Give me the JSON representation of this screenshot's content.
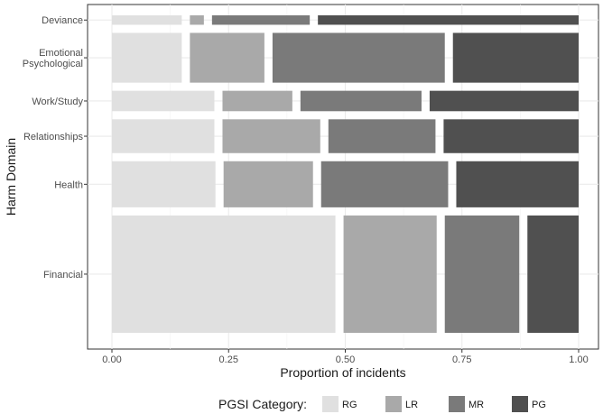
{
  "chart_data": {
    "type": "mosaic",
    "title": "",
    "xlabel": "Proportion of incidents",
    "ylabel": "Harm Domain",
    "xlim": [
      0,
      1
    ],
    "x_ticks": [
      "0.00",
      "0.25",
      "0.50",
      "0.75",
      "1.00"
    ],
    "x_tick_values": [
      0,
      0.25,
      0.5,
      0.75,
      1.0
    ],
    "grid": true,
    "legend": {
      "title": "PGSI Category:",
      "position": "bottom",
      "entries": [
        "RG",
        "LR",
        "MR",
        "PG"
      ]
    },
    "colors": {
      "RG": "#e0e0e0",
      "LR": "#a9a9a9",
      "MR": "#7a7a7a",
      "PG": "#505050"
    },
    "category_row_weights_note": "",
    "rows": [
      {
        "domain": "Financial",
        "label_lines": [
          "Financial"
        ],
        "weight": 0.448,
        "segments": [
          {
            "category": "RG",
            "value": 0.48
          },
          {
            "category": "LR",
            "value": 0.2
          },
          {
            "category": "MR",
            "value": 0.16
          },
          {
            "category": "PG",
            "value": 0.11
          }
        ]
      },
      {
        "domain": "Health",
        "label_lines": [
          "Health"
        ],
        "weight": 0.176,
        "segments": [
          {
            "category": "RG",
            "value": 0.22
          },
          {
            "category": "LR",
            "value": 0.19
          },
          {
            "category": "MR",
            "value": 0.27
          },
          {
            "category": "PG",
            "value": 0.26
          }
        ]
      },
      {
        "domain": "Relationships",
        "label_lines": [
          "Relationships"
        ],
        "weight": 0.129,
        "segments": [
          {
            "category": "RG",
            "value": 0.22
          },
          {
            "category": "LR",
            "value": 0.21
          },
          {
            "category": "MR",
            "value": 0.23
          },
          {
            "category": "PG",
            "value": 0.29
          }
        ]
      },
      {
        "domain": "Work/Study",
        "label_lines": [
          "Work/Study"
        ],
        "weight": 0.078,
        "segments": [
          {
            "category": "RG",
            "value": 0.22
          },
          {
            "category": "LR",
            "value": 0.15
          },
          {
            "category": "MR",
            "value": 0.26
          },
          {
            "category": "PG",
            "value": 0.32
          }
        ]
      },
      {
        "domain": "Emotional Psychological",
        "label_lines": [
          "Emotional",
          "Psychological"
        ],
        "weight": 0.19,
        "segments": [
          {
            "category": "RG",
            "value": 0.15
          },
          {
            "category": "LR",
            "value": 0.16
          },
          {
            "category": "MR",
            "value": 0.37
          },
          {
            "category": "PG",
            "value": 0.27
          }
        ]
      },
      {
        "domain": "Deviance",
        "label_lines": [
          "Deviance"
        ],
        "weight": 0.036,
        "segments": [
          {
            "category": "RG",
            "value": 0.15
          },
          {
            "category": "LR",
            "value": 0.03
          },
          {
            "category": "MR",
            "value": 0.21
          },
          {
            "category": "PG",
            "value": 0.56
          }
        ]
      }
    ]
  }
}
